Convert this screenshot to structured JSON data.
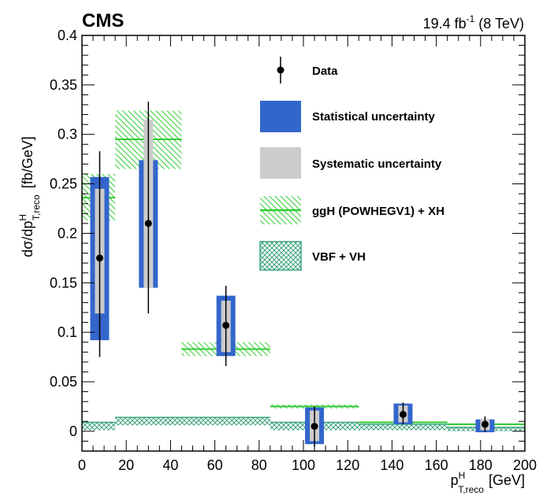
{
  "header": {
    "experiment": "CMS",
    "luminosity": "19.4 fb",
    "lumi_exponent": "-1",
    "energy": " (8 TeV)"
  },
  "axes": {
    "y_prefix": "dσ/dp",
    "y_sup": "H",
    "y_sub": "T,reco",
    "y_units": "[fb/GeV]",
    "x_prefix": "p",
    "x_sup": "H",
    "x_sub": "T,reco",
    "x_units": "[GeV]"
  },
  "legend": {
    "data": "Data",
    "stat": "Statistical uncertainty",
    "syst": "Systematic uncertainty",
    "ggh": "ggH (POWHEGV1) + XH",
    "vbf": "VBF + VH"
  },
  "colors": {
    "stat": "#3366cc",
    "syst": "#cccccc",
    "ggh": "#33cc33",
    "vbf": "#3aa37a"
  },
  "chart_data": {
    "type": "scatter",
    "xlim": [
      0,
      200
    ],
    "ylim": [
      -0.02,
      0.4
    ],
    "x_ticks": [
      0,
      20,
      40,
      60,
      80,
      100,
      120,
      140,
      160,
      180,
      200
    ],
    "x_tick_labels": [
      "0",
      "20",
      "40",
      "60",
      "80",
      "100",
      "120",
      "140",
      "160",
      "180",
      "200"
    ],
    "y_ticks": [
      0,
      0.05,
      0.1,
      0.15,
      0.2,
      0.25,
      0.3,
      0.35,
      0.4
    ],
    "y_tick_labels": [
      "0",
      "0.05",
      "0.1",
      "0.15",
      "0.2",
      "0.25",
      "0.3",
      "0.35",
      "0.4"
    ],
    "grid": false,
    "legend_position": "top-right",
    "bins": [
      {
        "low": 0,
        "high": 15,
        "x": 8,
        "y": 0.175,
        "tot_lo": 0.075,
        "tot_hi": 0.283,
        "stat_lo": 0.092,
        "stat_hi": 0.257,
        "syst_lo": 0.119,
        "syst_hi": 0.245,
        "ggh": 0.236,
        "ggh_lo": 0.213,
        "ggh_hi": 0.26,
        "vbf": 0.005,
        "vbf_lo": 0.001,
        "vbf_hi": 0.009
      },
      {
        "low": 15,
        "high": 45,
        "x": 30,
        "y": 0.21,
        "tot_lo": 0.119,
        "tot_hi": 0.333,
        "stat_lo": 0.145,
        "stat_hi": 0.274,
        "syst_lo": 0.145,
        "syst_hi": 0.315,
        "ggh": 0.295,
        "ggh_lo": 0.265,
        "ggh_hi": 0.324,
        "vbf": 0.01,
        "vbf_lo": 0.006,
        "vbf_hi": 0.014
      },
      {
        "low": 45,
        "high": 85,
        "x": 65,
        "y": 0.107,
        "tot_lo": 0.066,
        "tot_hi": 0.147,
        "stat_lo": 0.076,
        "stat_hi": 0.137,
        "syst_lo": 0.08,
        "syst_hi": 0.132,
        "ggh": 0.083,
        "ggh_lo": 0.076,
        "ggh_hi": 0.09,
        "vbf": 0.01,
        "vbf_lo": 0.006,
        "vbf_hi": 0.014
      },
      {
        "low": 85,
        "high": 125,
        "x": 105,
        "y": 0.005,
        "tot_lo": -0.016,
        "tot_hi": 0.025,
        "stat_lo": -0.013,
        "stat_hi": 0.024,
        "syst_lo": -0.01,
        "syst_hi": 0.021,
        "ggh": 0.025,
        "ggh_lo": 0.023,
        "ggh_hi": 0.027,
        "vbf": 0.005,
        "vbf_lo": 0.001,
        "vbf_hi": 0.009
      },
      {
        "low": 125,
        "high": 165,
        "x": 145,
        "y": 0.017,
        "tot_lo": 0.007,
        "tot_hi": 0.029,
        "stat_lo": 0.007,
        "stat_hi": 0.028,
        "syst_lo": 0.009,
        "syst_hi": 0.026,
        "ggh": 0.009,
        "ggh_lo": 0.008,
        "ggh_hi": 0.01,
        "vbf": 0.004,
        "vbf_lo": 0.001,
        "vbf_hi": 0.007
      },
      {
        "low": 165,
        "high": 200,
        "x": 182,
        "y": 0.007,
        "tot_lo": -0.001,
        "tot_hi": 0.015,
        "stat_lo": -0.001,
        "stat_hi": 0.012,
        "syst_lo": 0.001,
        "syst_hi": 0.012,
        "ggh": 0.007,
        "ggh_lo": 0.006,
        "ggh_hi": 0.008,
        "vbf": 0.002,
        "vbf_lo": 0.0,
        "vbf_hi": 0.004
      }
    ]
  }
}
